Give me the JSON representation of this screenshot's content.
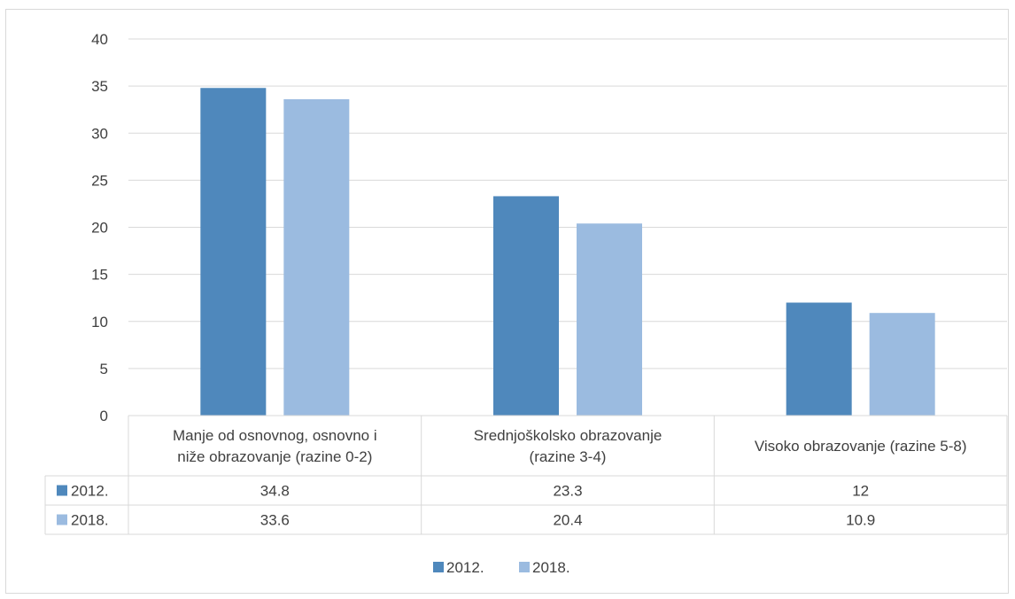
{
  "chart_data": {
    "type": "bar",
    "title": "",
    "xlabel": "",
    "ylabel": "",
    "categories_lines": [
      [
        "Manje od osnovnog, osnovno i",
        "niže obrazovanje (razine 0-2)"
      ],
      [
        "Srednjoškolsko obrazovanje",
        "(razine 3-4)"
      ],
      [
        "Visoko obrazovanje (razine 5-8)"
      ]
    ],
    "series": [
      {
        "name": "2012.",
        "color": "#4f88bc",
        "values": [
          34.8,
          23.3,
          12
        ],
        "value_labels": [
          "34.8",
          "23.3",
          "12"
        ]
      },
      {
        "name": "2018.",
        "color": "#9bbbe0",
        "values": [
          33.6,
          20.4,
          10.9
        ],
        "value_labels": [
          "33.6",
          "20.4",
          "10.9"
        ]
      }
    ],
    "ylim": [
      0,
      40
    ],
    "yticks": [
      "0",
      "5",
      "10",
      "15",
      "20",
      "25",
      "30",
      "35",
      "40"
    ],
    "grid": true,
    "data_table": true,
    "legend_position": "bottom"
  }
}
